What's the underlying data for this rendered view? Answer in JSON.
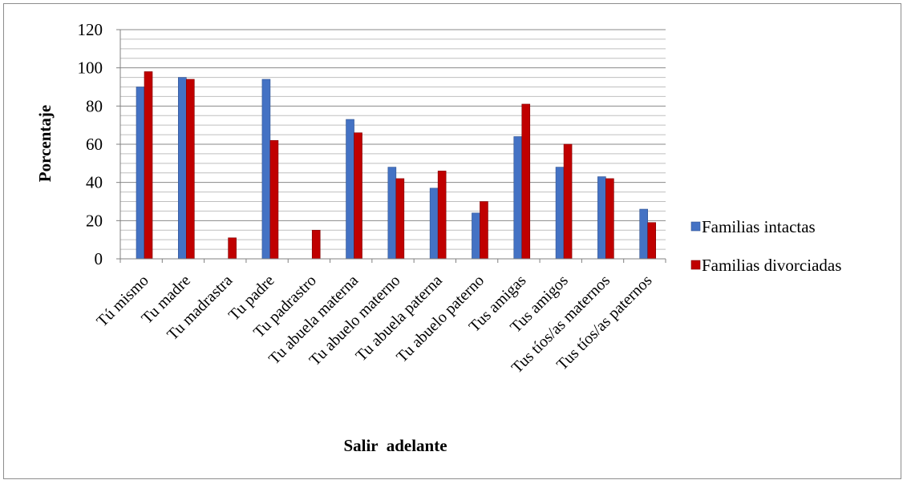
{
  "chart_data": {
    "type": "bar",
    "title": "",
    "xlabel": "Salir  adelante",
    "ylabel": "Porcentaje",
    "ylim": [
      0,
      120
    ],
    "yticks": [
      0,
      20,
      40,
      60,
      80,
      100,
      120
    ],
    "minor_grid_step": 5,
    "grid": true,
    "legend_position": "right",
    "categories": [
      "Tú mismo",
      "Tu madre",
      "Tu madrastra",
      "Tu padre",
      "Tu padrastro",
      "Tu abuela materna",
      "Tu abuelo materno",
      "Tu abuela paterna",
      "Tu abuelo paterno",
      "Tus amigas",
      "Tus amigos",
      "Tus tíos/as maternos",
      "Tus tíos/as paternos"
    ],
    "series": [
      {
        "name": "Familias intactas",
        "color": "#4472C4",
        "values": [
          90,
          95,
          0,
          94,
          0,
          73,
          48,
          37,
          24,
          64,
          48,
          43,
          26
        ]
      },
      {
        "name": "Familias divorciadas",
        "color": "#C00000",
        "values": [
          98,
          94,
          11,
          62,
          15,
          66,
          42,
          46,
          30,
          81,
          60,
          42,
          19
        ]
      }
    ]
  }
}
